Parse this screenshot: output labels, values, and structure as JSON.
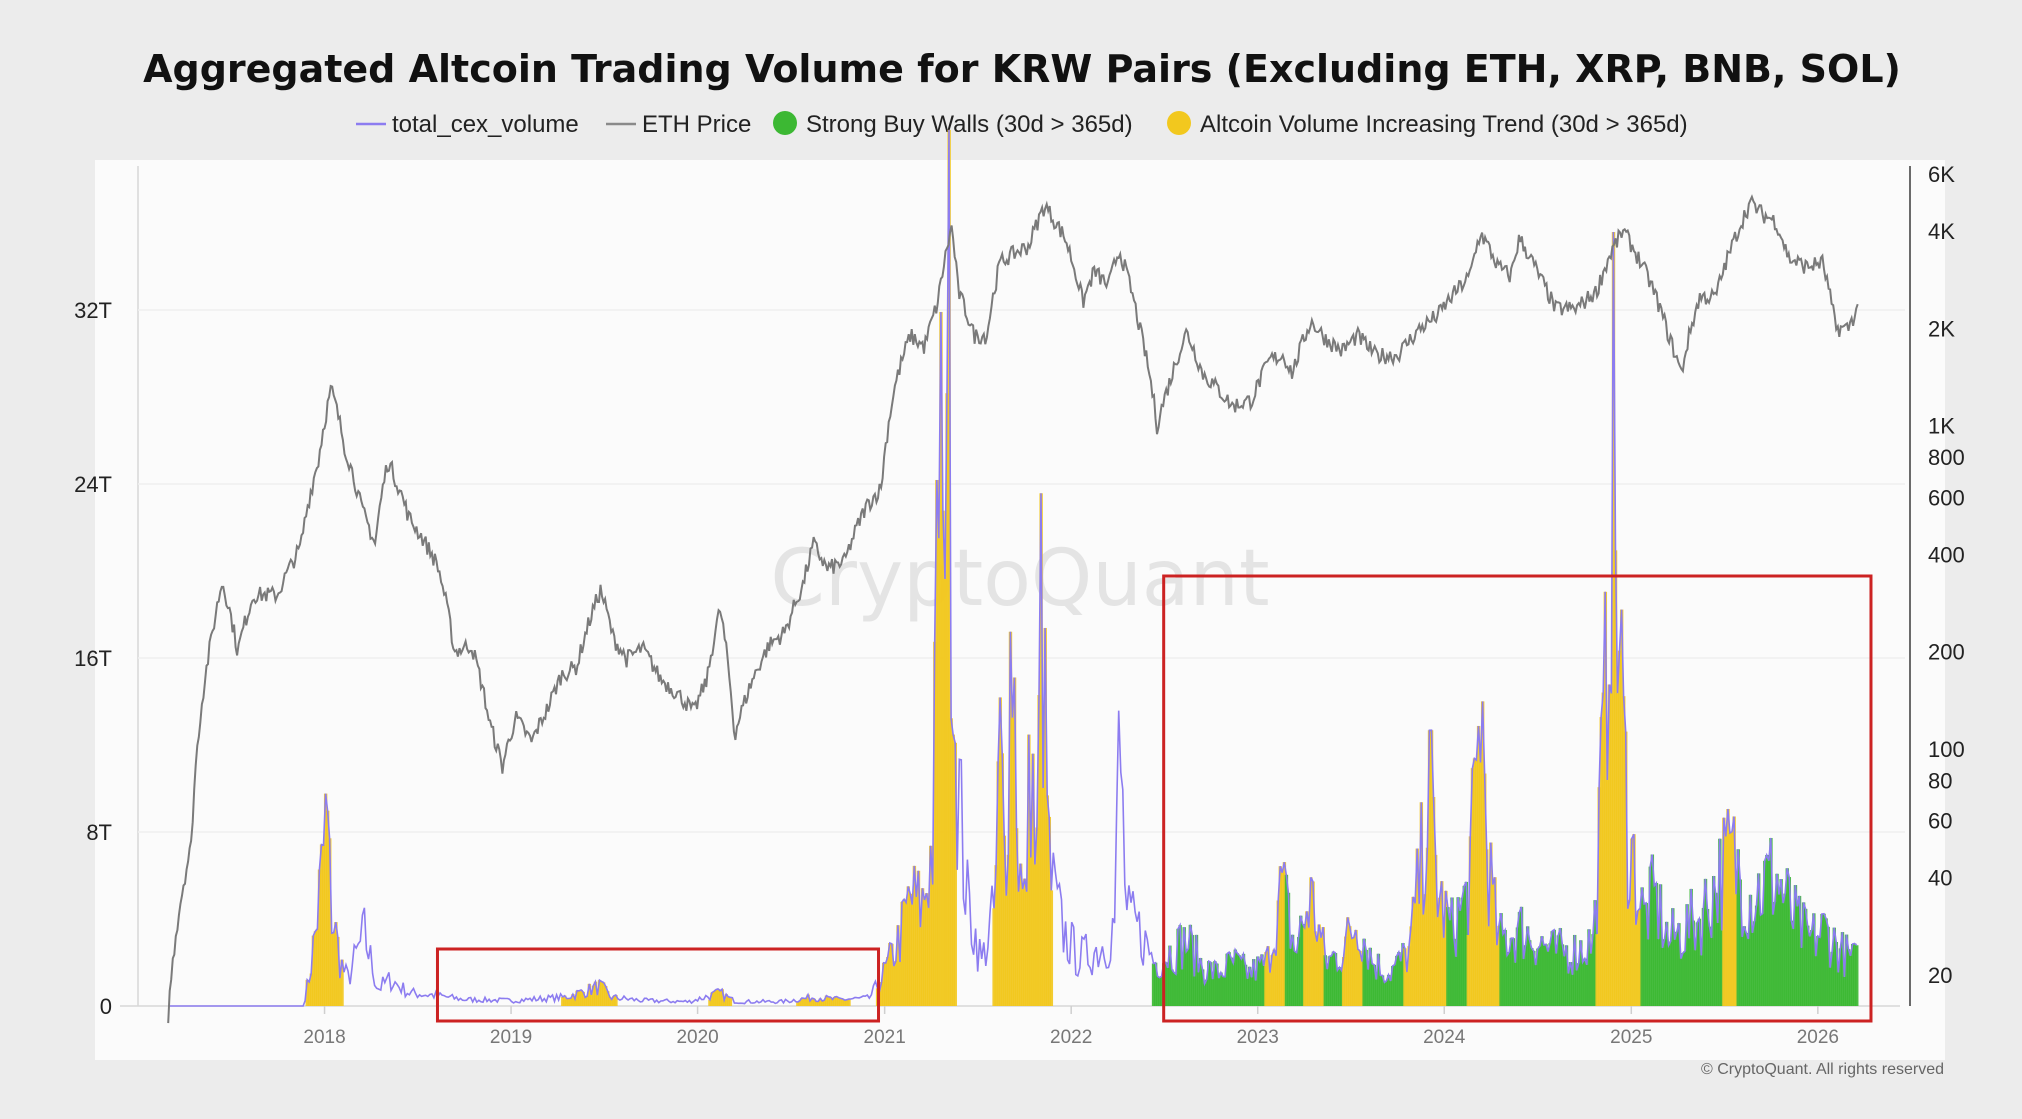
{
  "chart_data": {
    "type": "area",
    "title": "Aggregated Altcoin Trading Volume for KRW Pairs (Excluding ETH, XRP, BNB, SOL)",
    "watermark": "CryptoQuant",
    "copyright": "© CryptoQuant. All rights reserved",
    "legend": {
      "position": "top-center",
      "items": [
        {
          "label": "total_cex_volume",
          "marker": "line",
          "color": "#8c7cf0"
        },
        {
          "label": "ETH Price",
          "marker": "line",
          "color": "#8a8a8a"
        },
        {
          "label": "Strong Buy Walls (30d > 365d)",
          "marker": "dot",
          "color": "#3cb833"
        },
        {
          "label": "Altcoin Volume Increasing Trend (30d > 365d)",
          "marker": "dot",
          "color": "#f2c81e"
        }
      ]
    },
    "colors": {
      "volume": "#8c7cf0",
      "eth": "#7a7a7a",
      "green": "#3cb833",
      "yellow": "#f2c81e",
      "highlight": "#cc2222"
    },
    "x_axis": {
      "type": "date",
      "range": [
        "2017-01-01",
        "2026-06-01"
      ],
      "ticks": [
        "2018",
        "2019",
        "2020",
        "2021",
        "2022",
        "2023",
        "2024",
        "2025",
        "2026"
      ]
    },
    "y_left": {
      "label": "",
      "range": [
        0,
        40
      ],
      "unit": "T",
      "ticks": [
        {
          "v": 0,
          "label": "0"
        },
        {
          "v": 8,
          "label": "8T"
        },
        {
          "v": 16,
          "label": "16T"
        },
        {
          "v": 24,
          "label": "24T"
        },
        {
          "v": 32,
          "label": "32T"
        }
      ]
    },
    "y_right": {
      "label": "",
      "scale": "log",
      "range": [
        12,
        6000
      ],
      "ticks": [
        {
          "v": 20,
          "label": "20"
        },
        {
          "v": 40,
          "label": "40"
        },
        {
          "v": 60,
          "label": "60"
        },
        {
          "v": 80,
          "label": "80"
        },
        {
          "v": 100,
          "label": "100"
        },
        {
          "v": 200,
          "label": "200"
        },
        {
          "v": 400,
          "label": "400"
        },
        {
          "v": 600,
          "label": "600"
        },
        {
          "v": 800,
          "label": "800"
        },
        {
          "v": 1000,
          "label": "1K"
        },
        {
          "v": 2000,
          "label": "2K"
        },
        {
          "v": 4000,
          "label": "4K"
        },
        {
          "v": 6000,
          "label": "6K"
        }
      ]
    },
    "eth_price": [
      [
        "2017-03-01",
        15
      ],
      [
        "2017-04-15",
        50
      ],
      [
        "2017-05-25",
        220
      ],
      [
        "2017-06-15",
        330
      ],
      [
        "2017-07-15",
        200
      ],
      [
        "2017-08-15",
        300
      ],
      [
        "2017-10-01",
        300
      ],
      [
        "2017-11-15",
        420
      ],
      [
        "2017-12-20",
        780
      ],
      [
        "2018-01-14",
        1300
      ],
      [
        "2018-02-10",
        850
      ],
      [
        "2018-03-15",
        550
      ],
      [
        "2018-04-10",
        430
      ],
      [
        "2018-05-05",
        780
      ],
      [
        "2018-06-15",
        520
      ],
      [
        "2018-08-10",
        370
      ],
      [
        "2018-09-12",
        200
      ],
      [
        "2018-10-15",
        210
      ],
      [
        "2018-11-20",
        120
      ],
      [
        "2018-12-15",
        88
      ],
      [
        "2019-01-10",
        125
      ],
      [
        "2019-02-10",
        105
      ],
      [
        "2019-03-15",
        135
      ],
      [
        "2019-04-10",
        170
      ],
      [
        "2019-05-10",
        180
      ],
      [
        "2019-06-25",
        310
      ],
      [
        "2019-07-20",
        220
      ],
      [
        "2019-08-15",
        190
      ],
      [
        "2019-09-15",
        205
      ],
      [
        "2019-10-20",
        165
      ],
      [
        "2019-11-20",
        150
      ],
      [
        "2019-12-25",
        130
      ],
      [
        "2020-01-20",
        165
      ],
      [
        "2020-02-14",
        270
      ],
      [
        "2020-03-13",
        110
      ],
      [
        "2020-04-15",
        160
      ],
      [
        "2020-05-20",
        210
      ],
      [
        "2020-06-20",
        230
      ],
      [
        "2020-07-25",
        320
      ],
      [
        "2020-08-15",
        430
      ],
      [
        "2020-09-10",
        360
      ],
      [
        "2020-10-15",
        380
      ],
      [
        "2020-11-25",
        560
      ],
      [
        "2020-12-25",
        640
      ],
      [
        "2021-01-20",
        1300
      ],
      [
        "2021-02-20",
        1900
      ],
      [
        "2021-03-20",
        1750
      ],
      [
        "2021-04-15",
        2400
      ],
      [
        "2021-05-12",
        4100
      ],
      [
        "2021-05-25",
        2600
      ],
      [
        "2021-06-25",
        1900
      ],
      [
        "2021-07-20",
        1900
      ],
      [
        "2021-08-15",
        3200
      ],
      [
        "2021-09-10",
        3400
      ],
      [
        "2021-10-10",
        3600
      ],
      [
        "2021-11-10",
        4800
      ],
      [
        "2021-12-20",
        3800
      ],
      [
        "2022-01-24",
        2400
      ],
      [
        "2022-02-15",
        3000
      ],
      [
        "2022-03-15",
        2700
      ],
      [
        "2022-04-05",
        3500
      ],
      [
        "2022-05-15",
        2000
      ],
      [
        "2022-06-18",
        1000
      ],
      [
        "2022-07-15",
        1400
      ],
      [
        "2022-08-15",
        1950
      ],
      [
        "2022-09-15",
        1450
      ],
      [
        "2022-10-15",
        1300
      ],
      [
        "2022-11-12",
        1150
      ],
      [
        "2022-12-20",
        1200
      ],
      [
        "2023-01-25",
        1600
      ],
      [
        "2023-02-20",
        1650
      ],
      [
        "2023-03-10",
        1450
      ],
      [
        "2023-04-15",
        2100
      ],
      [
        "2023-05-15",
        1850
      ],
      [
        "2023-06-15",
        1700
      ],
      [
        "2023-07-15",
        1900
      ],
      [
        "2023-08-20",
        1650
      ],
      [
        "2023-10-01",
        1650
      ],
      [
        "2023-11-15",
        2000
      ],
      [
        "2023-12-20",
        2200
      ],
      [
        "2024-01-15",
        2500
      ],
      [
        "2024-02-20",
        2900
      ],
      [
        "2024-03-12",
        3950
      ],
      [
        "2024-04-15",
        3100
      ],
      [
        "2024-05-10",
        2900
      ],
      [
        "2024-05-27",
        3800
      ],
      [
        "2024-07-05",
        2900
      ],
      [
        "2024-08-05",
        2300
      ],
      [
        "2024-09-15",
        2300
      ],
      [
        "2024-10-25",
        2600
      ],
      [
        "2024-11-25",
        3500
      ],
      [
        "2024-12-16",
        4000
      ],
      [
        "2025-01-15",
        3300
      ],
      [
        "2025-02-10",
        2700
      ],
      [
        "2025-03-15",
        1900
      ],
      [
        "2025-04-09",
        1450
      ],
      [
        "2025-05-15",
        2500
      ],
      [
        "2025-06-15",
        2500
      ],
      [
        "2025-07-20",
        3700
      ],
      [
        "2025-08-22",
        4900
      ],
      [
        "2025-09-15",
        4500
      ],
      [
        "2025-10-10",
        4300
      ],
      [
        "2025-11-05",
        3300
      ],
      [
        "2025-12-10",
        3100
      ],
      [
        "2026-01-10",
        3200
      ],
      [
        "2026-02-05",
        2000
      ],
      [
        "2026-03-01",
        2000
      ],
      [
        "2026-03-20",
        2300
      ]
    ],
    "total_cex_volume": [
      [
        "2017-03-01",
        0.0
      ],
      [
        "2017-09-01",
        0.0
      ],
      [
        "2017-11-20",
        0.0
      ],
      [
        "2017-12-01",
        1.2
      ],
      [
        "2017-12-15",
        3.5
      ],
      [
        "2017-12-28",
        6.5
      ],
      [
        "2018-01-05",
        9.0
      ],
      [
        "2018-01-14",
        4.5
      ],
      [
        "2018-02-01",
        2.0
      ],
      [
        "2018-02-15",
        1.2
      ],
      [
        "2018-03-20",
        3.3
      ],
      [
        "2018-04-15",
        0.8
      ],
      [
        "2018-05-10",
        1.2
      ],
      [
        "2018-06-15",
        0.6
      ],
      [
        "2018-08-01",
        0.5
      ],
      [
        "2018-10-01",
        0.3
      ],
      [
        "2019-01-01",
        0.25
      ],
      [
        "2019-04-15",
        0.4
      ],
      [
        "2019-05-15",
        0.6
      ],
      [
        "2019-06-25",
        0.9
      ],
      [
        "2019-07-15",
        0.4
      ],
      [
        "2019-09-15",
        0.25
      ],
      [
        "2019-12-15",
        0.2
      ],
      [
        "2020-02-14",
        0.6
      ],
      [
        "2020-03-15",
        0.2
      ],
      [
        "2020-06-15",
        0.2
      ],
      [
        "2020-08-15",
        0.4
      ],
      [
        "2020-10-01",
        0.3
      ],
      [
        "2020-12-01",
        0.35
      ],
      [
        "2020-12-20",
        1.0
      ],
      [
        "2021-01-10",
        2.0
      ],
      [
        "2021-02-01",
        3.2
      ],
      [
        "2021-02-20",
        5.0
      ],
      [
        "2021-03-15",
        4.5
      ],
      [
        "2021-04-06",
        7.5
      ],
      [
        "2021-04-20",
        30.0
      ],
      [
        "2021-04-25",
        17.0
      ],
      [
        "2021-05-01",
        36.5
      ],
      [
        "2021-05-08",
        28.0
      ],
      [
        "2021-05-20",
        12.0
      ],
      [
        "2021-06-10",
        5.0
      ],
      [
        "2021-07-10",
        2.0
      ],
      [
        "2021-08-05",
        4.5
      ],
      [
        "2021-08-15",
        12.0
      ],
      [
        "2021-08-25",
        6.0
      ],
      [
        "2021-09-07",
        18.5
      ],
      [
        "2021-09-20",
        7.0
      ],
      [
        "2021-10-01",
        4.0
      ],
      [
        "2021-10-15",
        12.0
      ],
      [
        "2021-10-25",
        5.0
      ],
      [
        "2021-11-03",
        18.5
      ],
      [
        "2021-11-20",
        6.0
      ],
      [
        "2021-12-15",
        3.5
      ],
      [
        "2022-01-15",
        2.2
      ],
      [
        "2022-02-15",
        2.5
      ],
      [
        "2022-03-15",
        3.0
      ],
      [
        "2022-03-28",
        4.0
      ],
      [
        "2022-04-05",
        12.3
      ],
      [
        "2022-04-20",
        4.0
      ],
      [
        "2022-05-12",
        3.5
      ],
      [
        "2022-06-15",
        2.0
      ],
      [
        "2022-07-15",
        2.5
      ],
      [
        "2022-08-15",
        3.0
      ],
      [
        "2022-09-15",
        1.8
      ],
      [
        "2022-10-15",
        1.5
      ],
      [
        "2022-11-15",
        2.0
      ],
      [
        "2022-12-15",
        1.5
      ],
      [
        "2023-01-20",
        2.0
      ],
      [
        "2023-02-18",
        5.5
      ],
      [
        "2023-03-15",
        2.5
      ],
      [
        "2023-04-15",
        5.0
      ],
      [
        "2023-05-15",
        2.0
      ],
      [
        "2023-06-15",
        2.5
      ],
      [
        "2023-07-15",
        4.0
      ],
      [
        "2023-08-15",
        2.0
      ],
      [
        "2023-09-15",
        1.5
      ],
      [
        "2023-10-25",
        2.5
      ],
      [
        "2023-11-20",
        7.0
      ],
      [
        "2023-12-05",
        10.0
      ],
      [
        "2023-12-20",
        5.0
      ],
      [
        "2024-01-15",
        3.5
      ],
      [
        "2024-02-15",
        5.0
      ],
      [
        "2024-03-05",
        10.0
      ],
      [
        "2024-03-12",
        15.0
      ],
      [
        "2024-03-25",
        7.0
      ],
      [
        "2024-04-15",
        3.0
      ],
      [
        "2024-06-01",
        3.5
      ],
      [
        "2024-08-01",
        2.5
      ],
      [
        "2024-09-15",
        2.5
      ],
      [
        "2024-10-20",
        3.0
      ],
      [
        "2024-11-12",
        14.0
      ],
      [
        "2024-11-25",
        26.5
      ],
      [
        "2024-12-05",
        18.0
      ],
      [
        "2024-12-25",
        8.0
      ],
      [
        "2025-01-25",
        4.0
      ],
      [
        "2025-02-15",
        5.0
      ],
      [
        "2025-03-15",
        3.0
      ],
      [
        "2025-05-15",
        4.0
      ],
      [
        "2025-07-15",
        7.0
      ],
      [
        "2025-08-20",
        5.0
      ],
      [
        "2025-10-10",
        6.0
      ],
      [
        "2025-11-15",
        4.0
      ],
      [
        "2025-12-15",
        3.0
      ],
      [
        "2026-01-15",
        3.5
      ],
      [
        "2026-02-15",
        2.5
      ],
      [
        "2026-03-20",
        2.0
      ]
    ],
    "yellow_periods": [
      [
        "2017-11-25",
        "2018-02-05"
      ],
      [
        "2019-04-10",
        "2019-07-25"
      ],
      [
        "2020-01-25",
        "2020-03-05"
      ],
      [
        "2020-07-15",
        "2020-10-25"
      ],
      [
        "2020-12-15",
        "2021-05-20"
      ],
      [
        "2021-08-01",
        "2021-11-25"
      ],
      [
        "2023-01-15",
        "2023-02-25"
      ],
      [
        "2023-04-01",
        "2023-05-10"
      ],
      [
        "2023-06-15",
        "2023-07-25"
      ],
      [
        "2023-10-15",
        "2024-01-05"
      ],
      [
        "2024-02-15",
        "2024-04-20"
      ],
      [
        "2024-10-25",
        "2025-01-20"
      ],
      [
        "2025-07-01",
        "2025-07-25"
      ]
    ],
    "green_periods": [
      [
        "2022-06-10",
        "2026-03-20"
      ]
    ],
    "highlight_boxes": [
      [
        "2018-08-10",
        "2020-12-20"
      ],
      [
        "2022-07-01",
        "2026-04-15"
      ]
    ]
  }
}
